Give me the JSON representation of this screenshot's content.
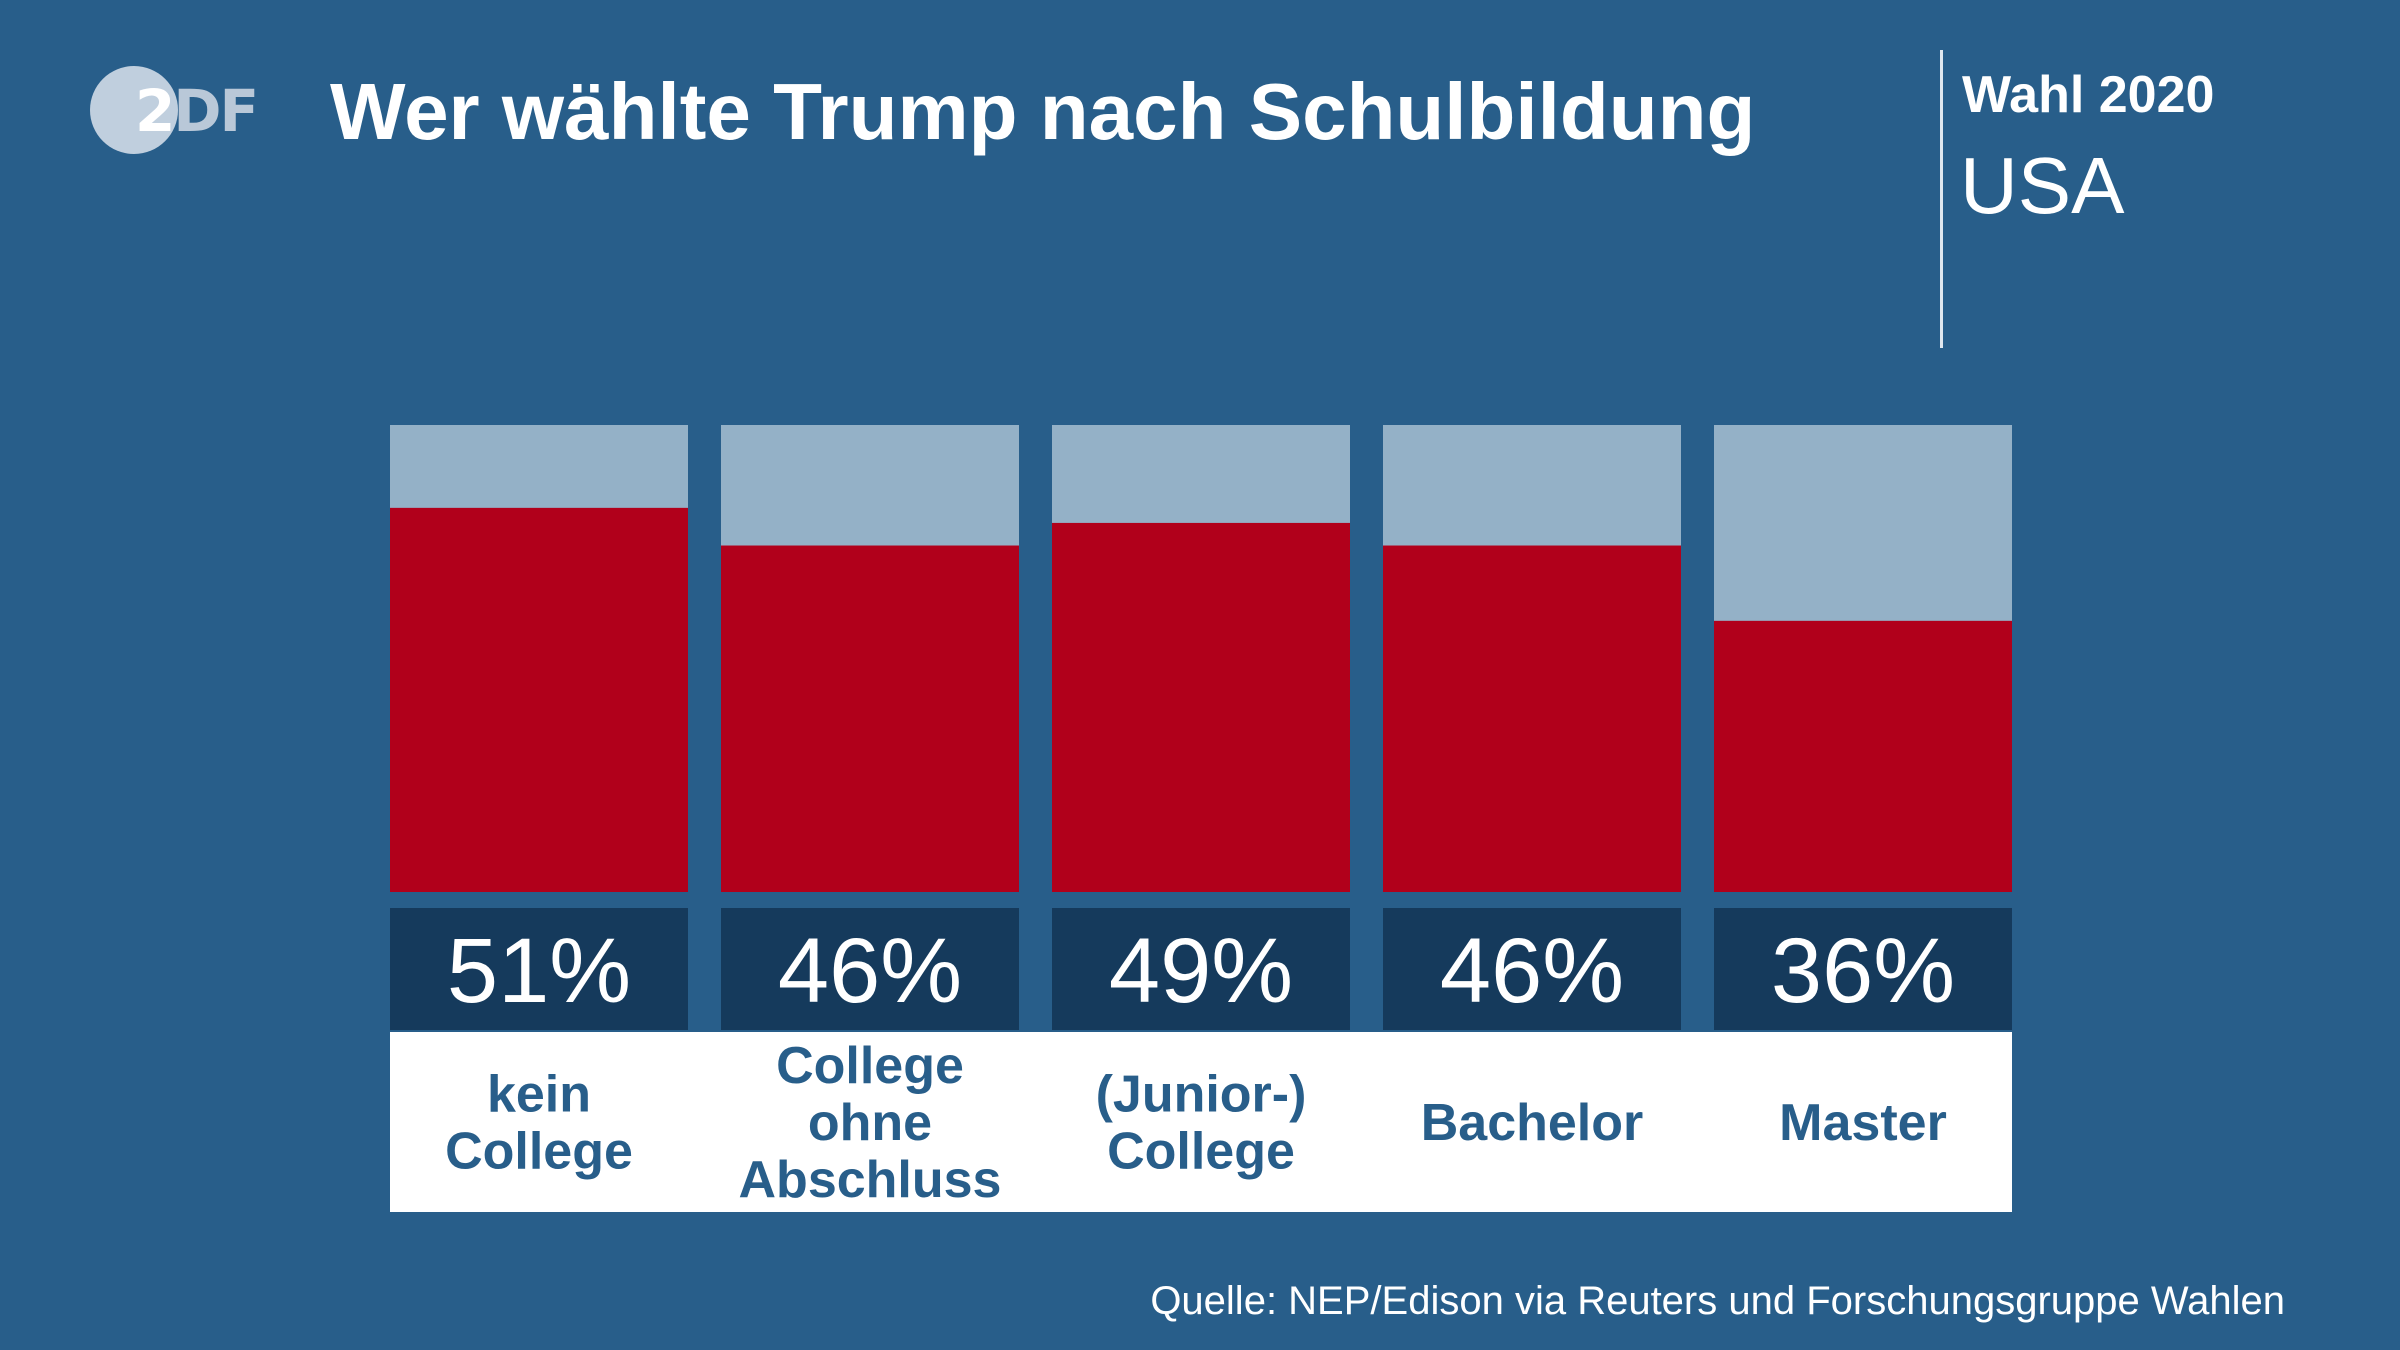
{
  "logo": {
    "text_lead": "2",
    "text_rest": "DF"
  },
  "title": "Wer wählte Trump nach Schulbildung",
  "election": "Wahl 2020",
  "country": "USA",
  "source": "Quelle: NEP/Edison via Reuters und Forschungsgruppe Wahlen",
  "colors": {
    "background": "#285e8a",
    "trump": "#b1001b",
    "remainder": "#94b1c7",
    "value_box": "#153a5c",
    "label_box": "#ffffff",
    "label_text": "#285e8a",
    "text": "#ffffff"
  },
  "chart_data": {
    "type": "bar",
    "stacked": true,
    "title": "Wer wählte Trump nach Schulbildung",
    "xlabel": "",
    "ylabel": "",
    "ylim": [
      0,
      62
    ],
    "categories": [
      [
        "kein",
        "College"
      ],
      [
        "College",
        "ohne",
        "Abschluss"
      ],
      [
        "(Junior-)",
        "College"
      ],
      [
        "Bachelor"
      ],
      [
        "Master"
      ]
    ],
    "series": [
      {
        "name": "Trump",
        "values": [
          51,
          46,
          49,
          46,
          36
        ]
      }
    ],
    "value_labels": [
      "51%",
      "46%",
      "49%",
      "46%",
      "36%"
    ]
  }
}
